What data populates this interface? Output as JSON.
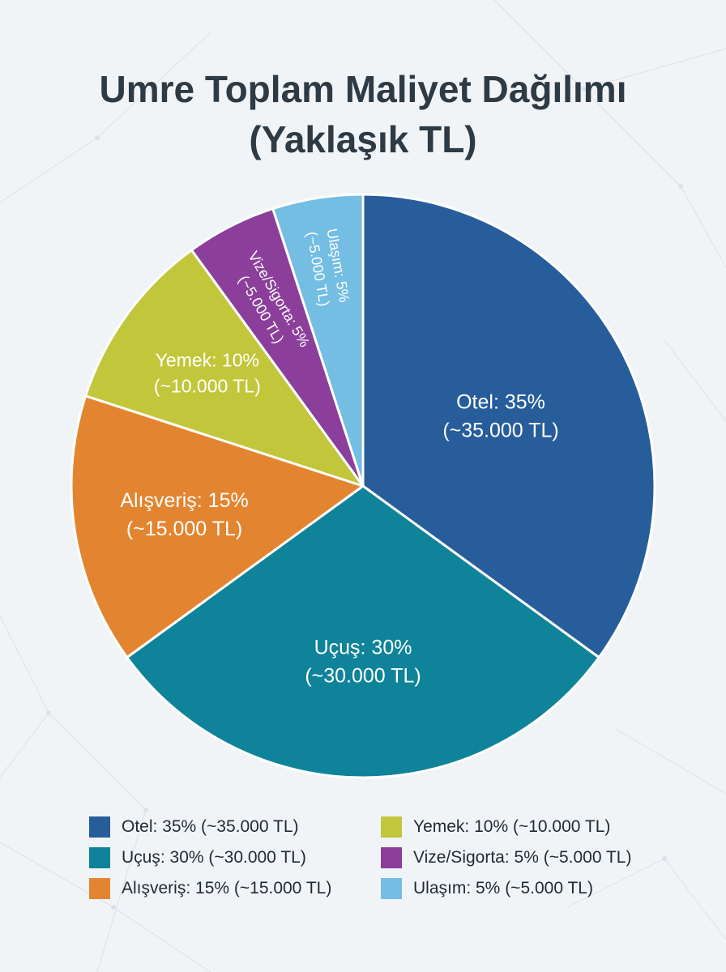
{
  "title_line1": "Umre Toplam Maliyet Dağılımı",
  "title_line2": "(Yaklaşık TL)",
  "chart_data": {
    "type": "pie",
    "title": "Umre Toplam Maliyet Dağılımı (Yaklaşık TL)",
    "slices": [
      {
        "category": "Otel",
        "percent": 35,
        "value": 35000,
        "color": "#275d9a",
        "label_line1": "Otel: 35%",
        "label_line2": "(~35.000 TL)",
        "legend": "Otel: 35% (~35.000 TL)"
      },
      {
        "category": "Uçuş",
        "percent": 30,
        "value": 30000,
        "color": "#0f8399",
        "label_line1": "Uçuş: 30%",
        "label_line2": "(~30.000 TL)",
        "legend": "Uçuş: 30% (~30.000 TL)"
      },
      {
        "category": "Alışveriş",
        "percent": 15,
        "value": 15000,
        "color": "#e38530",
        "label_line1": "Alışveriş: 15%",
        "label_line2": "(~15.000 TL)",
        "legend": "Alışveriş: 15% (~15.000 TL)"
      },
      {
        "category": "Yemek",
        "percent": 10,
        "value": 10000,
        "color": "#c2c63b",
        "label_line1": "Yemek: 10%",
        "label_line2": "(~10.000 TL)",
        "legend": "Yemek: 10% (~10.000 TL)"
      },
      {
        "category": "Vize/Sigorta",
        "percent": 5,
        "value": 5000,
        "color": "#8b3f9b",
        "label_line1": "Vize/Sigorta: 5%",
        "label_line2": "(~5.000 TL)",
        "legend": "Vize/Sigorta: 5% (~5.000 TL)"
      },
      {
        "category": "Ulaşım",
        "percent": 5,
        "value": 5000,
        "color": "#74bde3",
        "label_line1": "Ulaşım: 5%",
        "label_line2": "(~5.000 TL)",
        "legend": "Ulaşım: 5% (~5.000 TL)"
      }
    ],
    "legend_position": "bottom"
  }
}
